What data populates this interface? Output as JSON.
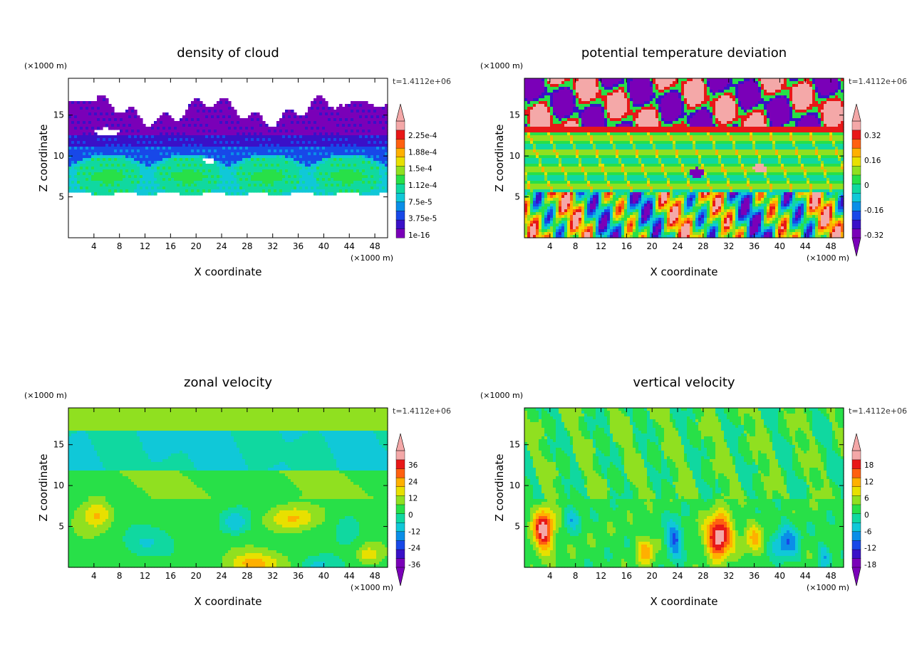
{
  "palette": [
    "#7a00b8",
    "#3a10c8",
    "#1848e8",
    "#0a8ee8",
    "#10c8d8",
    "#10d8a0",
    "#28e048",
    "#90e020",
    "#e8e000",
    "#ffb000",
    "#ff6010",
    "#e81818",
    "#f4a8a8"
  ],
  "chart_data": [
    {
      "type": "heatmap",
      "title": "density of cloud",
      "xlabel": "X coordinate",
      "ylabel": "Z coordinate",
      "x_unit": "(×1000 m)",
      "z_unit": "(×1000 m)",
      "time_label": "t=1.4112e+06",
      "x_ticks": [
        "4",
        "8",
        "12",
        "16",
        "20",
        "24",
        "28",
        "32",
        "36",
        "40",
        "44",
        "48"
      ],
      "y_ticks": [
        "5",
        "10",
        "15"
      ],
      "xlim": [
        0,
        50
      ],
      "ylim": [
        0,
        19.5
      ],
      "colorbar_labels": [
        "1e-16",
        "3.75e-5",
        "7.5e-5",
        "1.12e-4",
        "1.5e-4",
        "1.88e-4",
        "2.25e-4"
      ],
      "colorbar_arrow_low": false,
      "colorbar_arrow_high": true,
      "field": "cloud"
    },
    {
      "type": "heatmap",
      "title": "potential temperature deviation",
      "xlabel": "X coordinate",
      "ylabel": "Z coordinate",
      "x_unit": "(×1000 m)",
      "z_unit": "(×1000 m)",
      "time_label": "t=1.4112e+06",
      "x_ticks": [
        "4",
        "8",
        "12",
        "16",
        "20",
        "24",
        "28",
        "32",
        "36",
        "40",
        "44",
        "48"
      ],
      "y_ticks": [
        "5",
        "10",
        "15"
      ],
      "xlim": [
        0,
        50
      ],
      "ylim": [
        0,
        19.5
      ],
      "colorbar_labels": [
        "-0.32",
        "-0.16",
        "0",
        "0.16",
        "0.32"
      ],
      "colorbar_arrow_low": true,
      "colorbar_arrow_high": true,
      "field": "theta"
    },
    {
      "type": "heatmap",
      "title": "zonal velocity",
      "xlabel": "X coordinate",
      "ylabel": "Z coordinate",
      "x_unit": "(×1000 m)",
      "z_unit": "(×1000 m)",
      "time_label": "t=1.4112e+06",
      "x_ticks": [
        "4",
        "8",
        "12",
        "16",
        "20",
        "24",
        "28",
        "32",
        "36",
        "40",
        "44",
        "48"
      ],
      "y_ticks": [
        "5",
        "10",
        "15"
      ],
      "xlim": [
        0,
        50
      ],
      "ylim": [
        0,
        19.5
      ],
      "colorbar_labels": [
        "-36",
        "-24",
        "-12",
        "0",
        "12",
        "24",
        "36"
      ],
      "colorbar_arrow_low": true,
      "colorbar_arrow_high": true,
      "field": "u"
    },
    {
      "type": "heatmap",
      "title": "vertical velocity",
      "xlabel": "X coordinate",
      "ylabel": "Z coordinate",
      "x_unit": "(×1000 m)",
      "z_unit": "(×1000 m)",
      "time_label": "t=1.4112e+06",
      "x_ticks": [
        "4",
        "8",
        "12",
        "16",
        "20",
        "24",
        "28",
        "32",
        "36",
        "40",
        "44",
        "48"
      ],
      "y_ticks": [
        "5",
        "10",
        "15"
      ],
      "xlim": [
        0,
        50
      ],
      "ylim": [
        0,
        19.5
      ],
      "colorbar_labels": [
        "-18",
        "-12",
        "-6",
        "0",
        "6",
        "12",
        "18"
      ],
      "colorbar_arrow_low": true,
      "colorbar_arrow_high": true,
      "field": "w"
    }
  ]
}
